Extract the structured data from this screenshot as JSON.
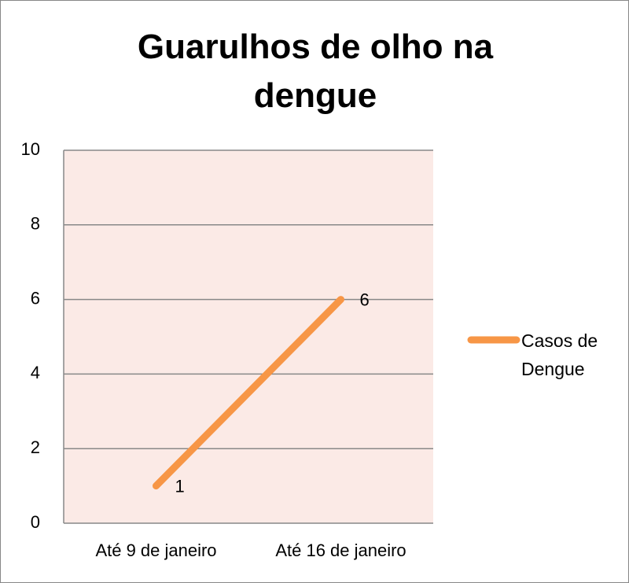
{
  "chart_data": {
    "type": "line",
    "title": "Guarulhos de olho na dengue",
    "categories": [
      "Até 9 de janeiro",
      "Até 16 de janeiro"
    ],
    "series": [
      {
        "name": "Casos de Dengue",
        "color": "#f79646",
        "values": [
          1,
          6
        ]
      }
    ],
    "ylim": [
      0,
      10
    ],
    "yticks": [
      0,
      2,
      4,
      6,
      8,
      10
    ],
    "grid": true,
    "legend": "right"
  }
}
